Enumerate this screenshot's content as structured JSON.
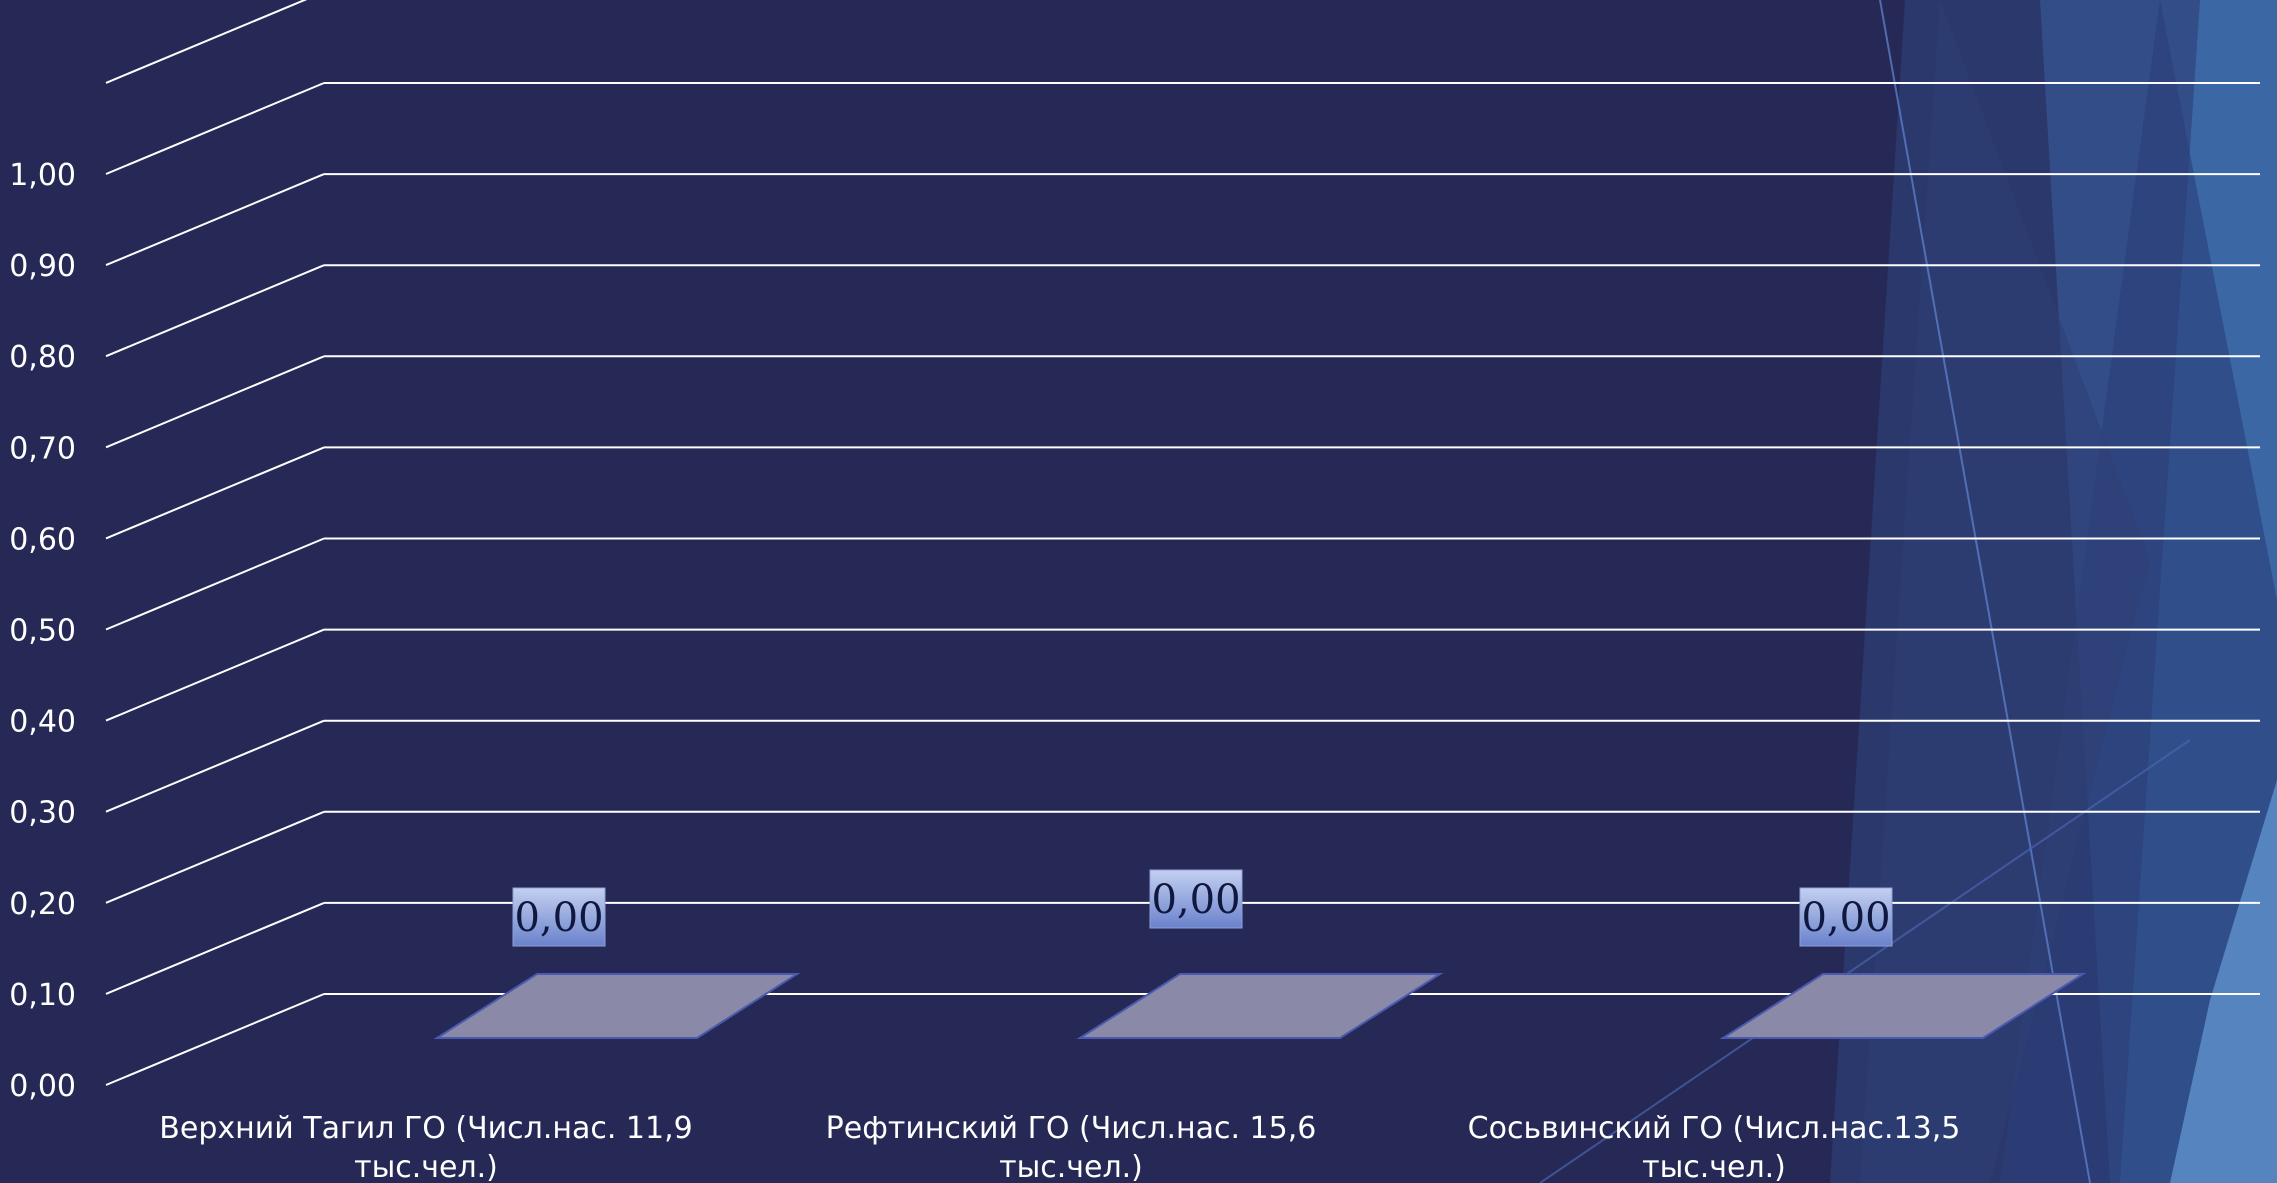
{
  "chart_data": {
    "type": "bar",
    "title": "",
    "xlabel": "",
    "ylabel": "",
    "ylim": [
      0,
      1.0
    ],
    "y_ticks": [
      "0,00",
      "0,10",
      "0,20",
      "0,30",
      "0,40",
      "0,50",
      "0,60",
      "0,70",
      "0,80",
      "0,90",
      "1,00"
    ],
    "categories": [
      [
        "Верхний Тагил ГО (Числ.нас. 11,9",
        "тыс.чел.)"
      ],
      [
        "Рефтинский ГО (Числ.нас. 15,6",
        "тыс.чел.)"
      ],
      [
        "Сосьвинский ГО (Числ.нас.13,5",
        "тыс.чел.)"
      ]
    ],
    "values": [
      0,
      0,
      0
    ],
    "data_labels": [
      "0,00",
      "0,00",
      "0,00"
    ],
    "grid": true,
    "view": "3d",
    "colors": {
      "background": "#262955",
      "gridline": "#ffffff",
      "bar": "#8a8aa8",
      "bar_edge": "#4a5ab0",
      "label_box_top": "#c4d0f0",
      "label_box_bottom": "#6a82cc"
    }
  }
}
